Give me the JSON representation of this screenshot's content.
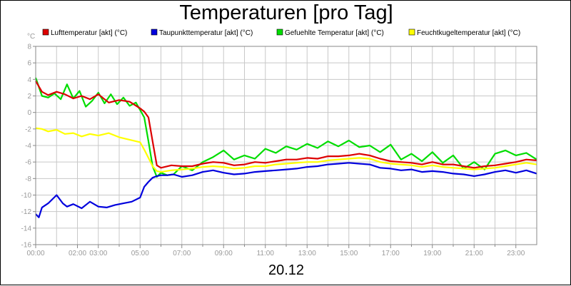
{
  "chart_data": {
    "type": "line",
    "title": "Temperaturen [pro Tag]",
    "xlabel": "20.12",
    "ylabel": "°C",
    "ylim": [
      -16,
      8
    ],
    "xlim_hours": [
      0,
      24
    ],
    "y_ticks": [
      8,
      6,
      4,
      2,
      0,
      -2,
      -4,
      -6,
      -8,
      -10,
      -12,
      -14,
      -16
    ],
    "x_tick_labels": [
      {
        "hour": 0,
        "label": "00:00"
      },
      {
        "hour": 2,
        "label": "02:00"
      },
      {
        "hour": 3,
        "label": "03:00"
      },
      {
        "hour": 5,
        "label": "05:00"
      },
      {
        "hour": 7,
        "label": "07:00"
      },
      {
        "hour": 9,
        "label": "09:00"
      },
      {
        "hour": 11,
        "label": "11:00"
      },
      {
        "hour": 13,
        "label": "13:00"
      },
      {
        "hour": 15,
        "label": "15:00"
      },
      {
        "hour": 17,
        "label": "17:00"
      },
      {
        "hour": 19,
        "label": "19:00"
      },
      {
        "hour": 21,
        "label": "21:00"
      },
      {
        "hour": 23,
        "label": "23:00"
      }
    ],
    "x_minor_hours": [
      1,
      4,
      6,
      8,
      10,
      12,
      14,
      16,
      18,
      20,
      22
    ],
    "grid": true,
    "legend_position": "top",
    "series": [
      {
        "name": "Lufttemperatur [akt] (°C)",
        "color": "#dd0000",
        "x": [
          0,
          0.3,
          0.6,
          1.0,
          1.4,
          1.8,
          2.2,
          2.6,
          3.0,
          3.5,
          4.0,
          4.5,
          5.0,
          5.2,
          5.4,
          5.6,
          5.8,
          6.0,
          6.5,
          7.0,
          7.5,
          8.0,
          8.5,
          9.0,
          9.5,
          10.0,
          10.5,
          11.0,
          11.5,
          12.0,
          12.5,
          13.0,
          13.5,
          14.0,
          14.5,
          15.0,
          15.5,
          16.0,
          16.5,
          17.0,
          17.5,
          18.0,
          18.5,
          19.0,
          19.5,
          20.0,
          20.5,
          21.0,
          21.5,
          22.0,
          22.5,
          23.0,
          23.5,
          24.0
        ],
        "values": [
          3.8,
          2.5,
          2.1,
          2.5,
          2.2,
          1.7,
          2.0,
          1.6,
          2.2,
          1.2,
          1.5,
          1.3,
          0.5,
          0.1,
          -0.6,
          -3.5,
          -6.4,
          -6.7,
          -6.4,
          -6.5,
          -6.5,
          -6.2,
          -6.0,
          -6.1,
          -6.4,
          -6.3,
          -6.0,
          -6.1,
          -5.9,
          -5.7,
          -5.7,
          -5.5,
          -5.6,
          -5.3,
          -5.3,
          -5.2,
          -5.0,
          -5.2,
          -5.6,
          -5.9,
          -6.0,
          -6.1,
          -6.3,
          -6.0,
          -6.3,
          -6.3,
          -6.5,
          -6.7,
          -6.5,
          -6.4,
          -6.2,
          -6.0,
          -5.7,
          -5.8
        ]
      },
      {
        "name": "Taupunkttemperatur [akt] (°C)",
        "color": "#0000dd",
        "x": [
          0,
          0.15,
          0.3,
          0.6,
          1.0,
          1.3,
          1.5,
          1.8,
          2.2,
          2.6,
          3.0,
          3.4,
          3.8,
          4.2,
          4.6,
          5.0,
          5.2,
          5.4,
          5.6,
          5.8,
          6.0,
          6.3,
          6.6,
          7.0,
          7.5,
          8.0,
          8.5,
          9.0,
          9.5,
          10.0,
          10.5,
          11.0,
          11.5,
          12.0,
          12.5,
          13.0,
          13.5,
          14.0,
          14.5,
          15.0,
          15.5,
          16.0,
          16.5,
          17.0,
          17.5,
          18.0,
          18.5,
          19.0,
          19.5,
          20.0,
          20.5,
          21.0,
          21.5,
          22.0,
          22.5,
          23.0,
          23.5,
          24.0
        ],
        "values": [
          -12.3,
          -12.7,
          -11.5,
          -11.0,
          -10.0,
          -11.0,
          -11.4,
          -11.1,
          -11.6,
          -10.8,
          -11.4,
          -11.5,
          -11.2,
          -11.0,
          -10.8,
          -10.3,
          -9.0,
          -8.4,
          -7.9,
          -7.7,
          -7.6,
          -7.6,
          -7.5,
          -7.8,
          -7.6,
          -7.2,
          -7.0,
          -7.3,
          -7.5,
          -7.4,
          -7.2,
          -7.1,
          -7.0,
          -6.9,
          -6.8,
          -6.6,
          -6.5,
          -6.3,
          -6.2,
          -6.1,
          -6.2,
          -6.3,
          -6.7,
          -6.8,
          -7.0,
          -6.9,
          -7.2,
          -7.1,
          -7.2,
          -7.4,
          -7.5,
          -7.7,
          -7.5,
          -7.2,
          -7.0,
          -7.3,
          -7.0,
          -7.4
        ]
      },
      {
        "name": "Gefuehlte Temperatur [akt] (°C)",
        "color": "#00dd00",
        "x": [
          0,
          0.3,
          0.6,
          0.9,
          1.2,
          1.5,
          1.8,
          2.1,
          2.4,
          2.7,
          3.0,
          3.3,
          3.6,
          3.9,
          4.2,
          4.5,
          4.8,
          5.0,
          5.2,
          5.4,
          5.6,
          5.8,
          6.0,
          6.3,
          6.6,
          7.0,
          7.5,
          8.0,
          8.5,
          9.0,
          9.5,
          10.0,
          10.5,
          11.0,
          11.5,
          12.0,
          12.5,
          13.0,
          13.5,
          14.0,
          14.5,
          15.0,
          15.5,
          16.0,
          16.5,
          17.0,
          17.5,
          18.0,
          18.5,
          19.0,
          19.5,
          20.0,
          20.5,
          21.0,
          21.5,
          22.0,
          22.5,
          23.0,
          23.5,
          24.0
        ],
        "values": [
          4.2,
          2.0,
          1.8,
          2.3,
          1.6,
          3.4,
          1.7,
          2.6,
          0.7,
          1.4,
          2.4,
          1.1,
          2.2,
          1.0,
          1.8,
          0.8,
          1.2,
          0.3,
          -0.6,
          -3.5,
          -6.5,
          -7.8,
          -7.3,
          -7.6,
          -7.5,
          -6.5,
          -7.0,
          -6.0,
          -5.4,
          -4.6,
          -5.7,
          -5.2,
          -5.6,
          -4.4,
          -4.9,
          -4.1,
          -4.5,
          -3.8,
          -4.3,
          -3.5,
          -4.1,
          -3.4,
          -4.2,
          -4.0,
          -4.8,
          -3.9,
          -5.7,
          -5.0,
          -5.9,
          -4.8,
          -6.1,
          -5.2,
          -6.8,
          -6.0,
          -6.9,
          -5.0,
          -4.6,
          -5.2,
          -4.9,
          -5.7
        ]
      },
      {
        "name": "Feuchtkugeltemperatur [akt] (°C)",
        "color": "#ffff00",
        "x": [
          0,
          0.3,
          0.6,
          1.0,
          1.4,
          1.8,
          2.2,
          2.6,
          3.0,
          3.5,
          4.0,
          4.5,
          5.0,
          5.2,
          5.4,
          5.6,
          5.8,
          6.0,
          6.5,
          7.0,
          7.5,
          8.0,
          8.5,
          9.0,
          9.5,
          10.0,
          10.5,
          11.0,
          11.5,
          12.0,
          12.5,
          13.0,
          13.5,
          14.0,
          14.5,
          15.0,
          15.5,
          16.0,
          16.5,
          17.0,
          17.5,
          18.0,
          18.5,
          19.0,
          19.5,
          20.0,
          20.5,
          21.0,
          21.5,
          22.0,
          22.5,
          23.0,
          23.5,
          24.0
        ],
        "values": [
          -1.9,
          -2.0,
          -2.3,
          -2.1,
          -2.6,
          -2.5,
          -2.9,
          -2.6,
          -2.8,
          -2.5,
          -3.0,
          -3.3,
          -3.6,
          -4.5,
          -5.5,
          -6.5,
          -7.1,
          -7.2,
          -7.0,
          -6.9,
          -6.8,
          -6.6,
          -6.5,
          -6.6,
          -6.8,
          -6.7,
          -6.5,
          -6.5,
          -6.3,
          -6.2,
          -6.1,
          -6.0,
          -6.0,
          -5.8,
          -5.7,
          -5.6,
          -5.5,
          -5.6,
          -6.0,
          -6.2,
          -6.3,
          -6.4,
          -6.6,
          -6.4,
          -6.6,
          -6.7,
          -6.8,
          -6.9,
          -6.8,
          -6.7,
          -6.5,
          -6.3,
          -6.1,
          -6.3
        ]
      }
    ]
  }
}
